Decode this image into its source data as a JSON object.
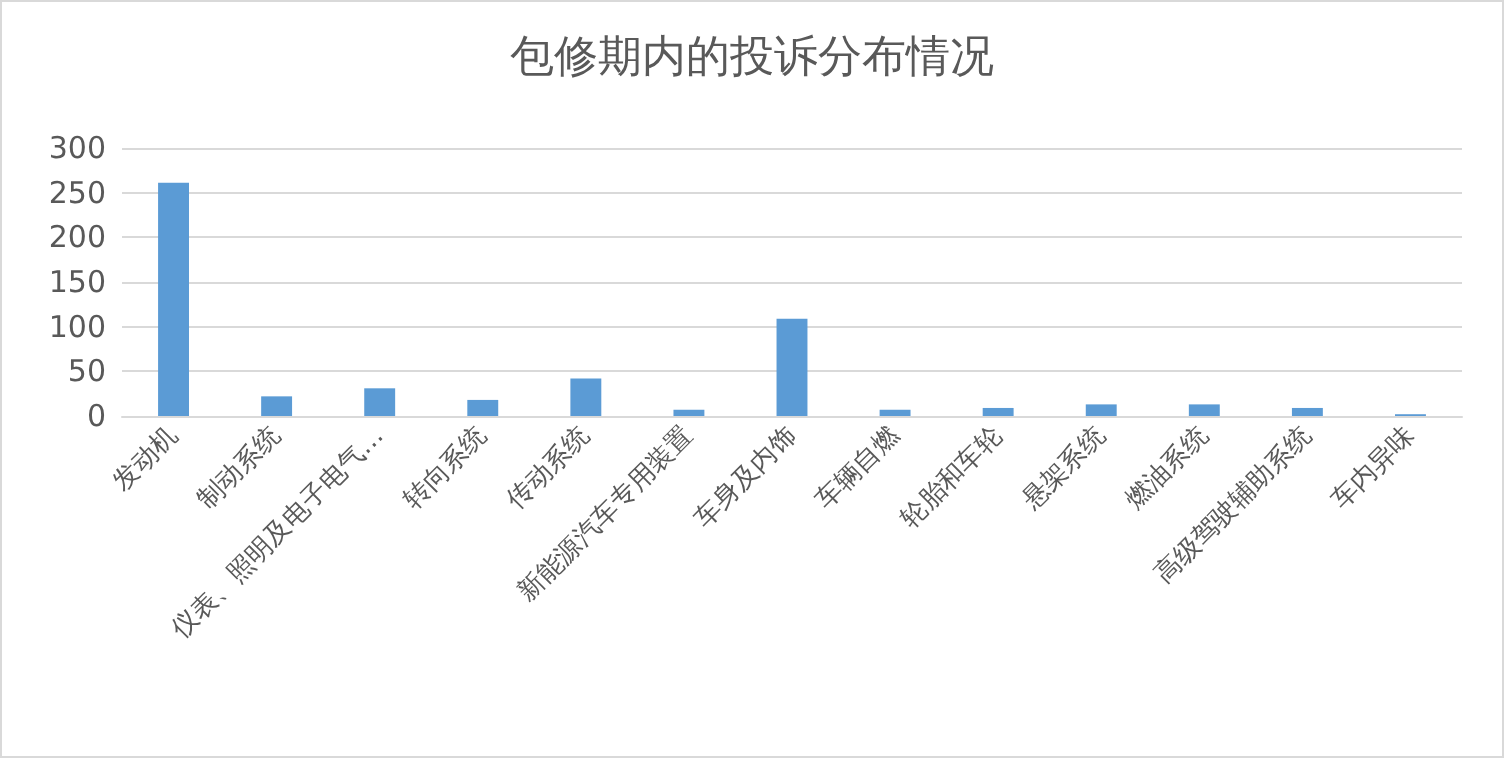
{
  "chart_data": {
    "type": "bar",
    "title": "包修期内的投诉分布情况",
    "categories": [
      "发动机",
      "制动系统",
      "仪表、照明及电子电气…",
      "转向系统",
      "传动系统",
      "新能源汽车专用装置",
      "车身及内饰",
      "车辆自燃",
      "轮胎和车轮",
      "悬架系统",
      "燃油系统",
      "高级驾驶辅助系统",
      "车内异味"
    ],
    "values": [
      261,
      22,
      31,
      18,
      42,
      7,
      109,
      7,
      9,
      13,
      13,
      9,
      2
    ],
    "color": "#5b9bd5",
    "ylim": [
      0,
      300
    ],
    "yticks": [
      0,
      50,
      100,
      150,
      200,
      250,
      300
    ],
    "grid": "y"
  }
}
